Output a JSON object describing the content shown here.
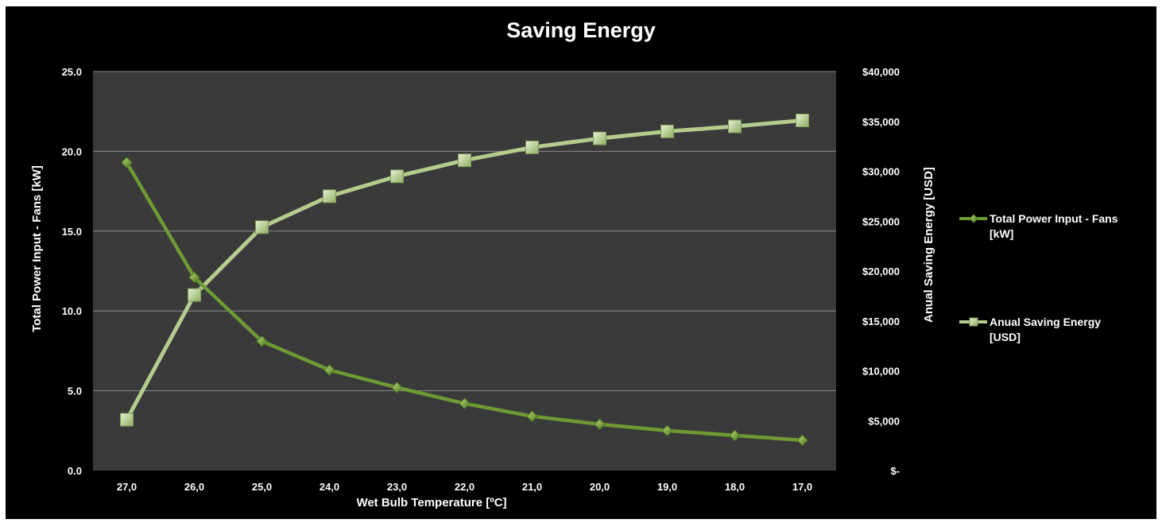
{
  "chart_data": {
    "type": "line",
    "title": "Saving Energy",
    "xlabel": "Wet Bulb Temperature [ºC]",
    "ylabel_left": "Total Power Input - Fans [kW]",
    "ylabel_right": "Anual Saving Energy [USD]",
    "categories": [
      "27,0",
      "26,0",
      "25,0",
      "24,0",
      "23,0",
      "22,0",
      "21,0",
      "20,0",
      "19,0",
      "18,0",
      "17,0"
    ],
    "y_left": {
      "range": [
        0,
        25
      ],
      "ticks": [
        0,
        5,
        10,
        15,
        20,
        25
      ],
      "tick_labels": [
        "0.0",
        "5.0",
        "10.0",
        "15.0",
        "20.0",
        "25.0"
      ]
    },
    "y_right": {
      "range": [
        0,
        40000
      ],
      "ticks": [
        0,
        5000,
        10000,
        15000,
        20000,
        25000,
        30000,
        35000,
        40000
      ],
      "tick_labels": [
        "$-",
        "$5,000",
        "$10,000",
        "$15,000",
        "$20,000",
        "$25,000",
        "$30,000",
        "$35,000",
        "$40,000"
      ]
    },
    "series": [
      {
        "name": "Total Power Input - Fans [kW]",
        "legend_lines": [
          "Total Power Input - Fans",
          "[kW]"
        ],
        "axis": "left",
        "marker": "diamond",
        "color": "#6e9a35",
        "values": [
          19.3,
          12.1,
          8.1,
          6.3,
          5.2,
          4.2,
          3.4,
          2.9,
          2.5,
          2.2,
          1.9
        ]
      },
      {
        "name": "Anual Saving Energy [USD]",
        "legend_lines": [
          "Anual Saving Energy",
          "[USD]"
        ],
        "axis": "right",
        "marker": "square",
        "color": "#b4cc8e",
        "values": [
          5100,
          17600,
          24400,
          27500,
          29500,
          31100,
          32400,
          33300,
          34000,
          34500,
          35100
        ]
      }
    ],
    "grid": true,
    "legend_position": "right"
  }
}
